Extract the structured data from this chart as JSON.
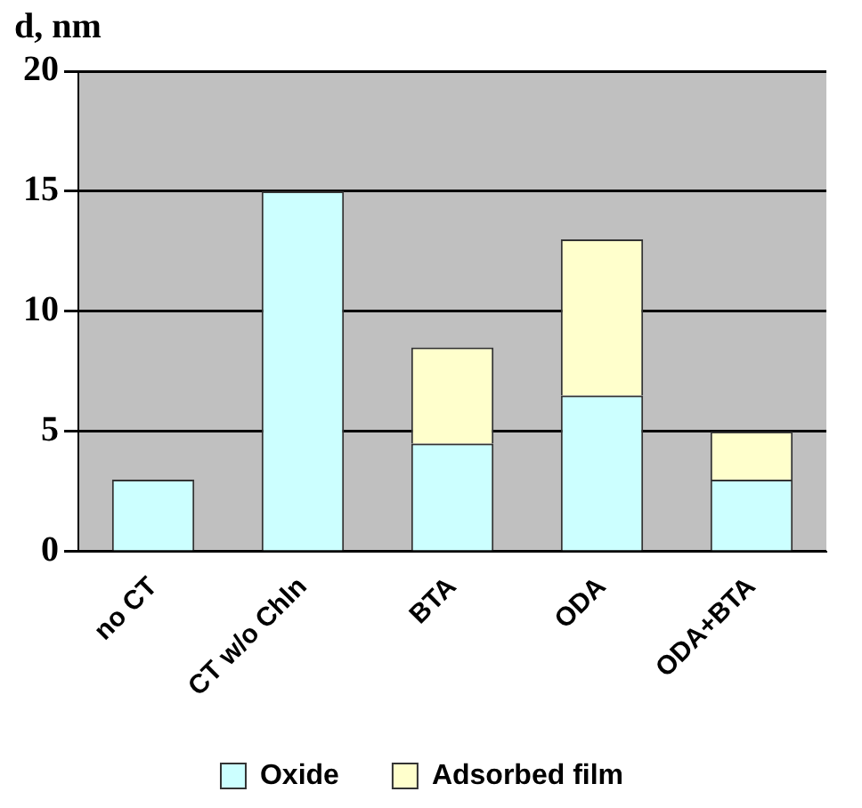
{
  "chart_data": {
    "type": "bar",
    "ylabel": "d, nm",
    "categories": [
      "no CT",
      "CT w/o Chln",
      "BTA",
      "ODA",
      "ODA+BTA"
    ],
    "stacked": true,
    "series": [
      {
        "name": "Oxide",
        "color": "#ccffff",
        "values": [
          3,
          15,
          4.5,
          6.5,
          3
        ]
      },
      {
        "name": "Adsorbed film",
        "color": "#ffffcc",
        "values": [
          0,
          0,
          4,
          6.5,
          2
        ]
      }
    ],
    "ylim": [
      0,
      20
    ],
    "yticks": [
      0,
      5,
      10,
      15,
      20
    ],
    "grid": "y",
    "legend": "bottom"
  }
}
